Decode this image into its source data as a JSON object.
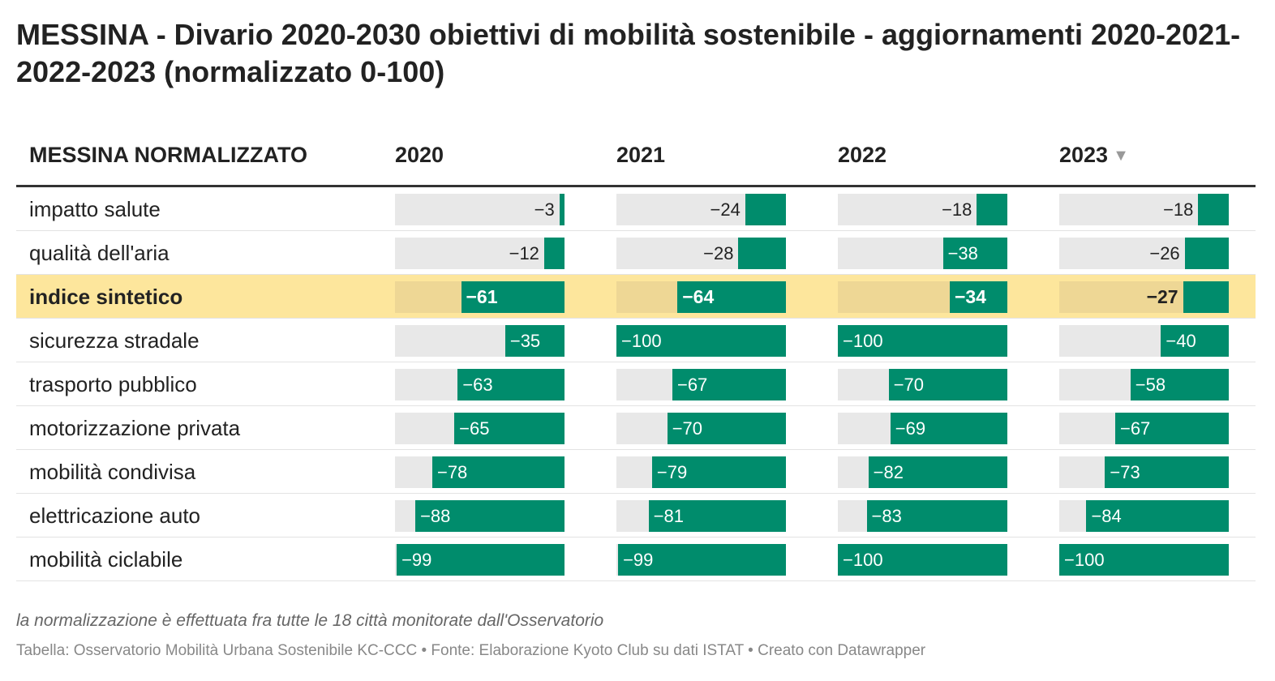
{
  "title": "MESSINA - Divario 2020-2030 obiettivi di mobilità sostenibile - aggiornamenti 2020-2021-2022-2023 (normalizzato 0-100)",
  "notes": "la normalizzazione è effettuata fra tutte le 18 città monitorate dall'Osservatorio",
  "source": "Tabella: Osservatorio Mobilità Urbana Sostenibile KC-CCC • Fonte: Elaborazione Kyoto Club su dati ISTAT • Creato con Datawrapper",
  "sort_indicator_icon": "triangle-down-icon",
  "colors": {
    "bar": "#008c6c",
    "bar_bg": "#e8e8e8",
    "highlight_row": "#fde69c"
  },
  "chart_data": {
    "type": "table",
    "label_header": "MESSINA NORMALIZZATO",
    "columns": [
      "2020",
      "2021",
      "2022",
      "2023"
    ],
    "sorted_by": "2023",
    "scale": [
      -100,
      0
    ],
    "highlighted_row": "indice sintetico",
    "rows": [
      {
        "label": "impatto salute",
        "values": [
          -3,
          -24,
          -18,
          -18
        ]
      },
      {
        "label": "qualità dell'aria",
        "values": [
          -12,
          -28,
          -38,
          -26
        ]
      },
      {
        "label": "indice sintetico",
        "values": [
          -61,
          -64,
          -34,
          -27
        ]
      },
      {
        "label": "sicurezza stradale",
        "values": [
          -35,
          -100,
          -100,
          -40
        ]
      },
      {
        "label": "trasporto pubblico",
        "values": [
          -63,
          -67,
          -70,
          -58
        ]
      },
      {
        "label": "motorizzazione privata",
        "values": [
          -65,
          -70,
          -69,
          -67
        ]
      },
      {
        "label": "mobilità condivisa",
        "values": [
          -78,
          -79,
          -82,
          -73
        ]
      },
      {
        "label": "elettricazione auto",
        "values": [
          -88,
          -81,
          -83,
          -84
        ]
      },
      {
        "label": "mobilità ciclabile",
        "values": [
          -99,
          -99,
          -100,
          -100
        ]
      }
    ]
  }
}
